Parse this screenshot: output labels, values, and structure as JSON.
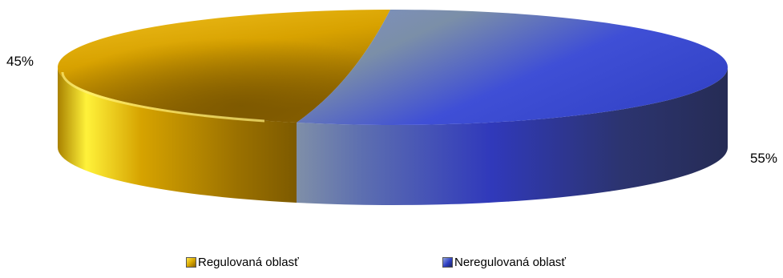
{
  "chart_data": {
    "type": "pie",
    "style": "3d-exploded-perspective",
    "title": "",
    "categories": [
      "Regulovaná oblasť",
      "Neregulovaná oblasť"
    ],
    "values": [
      45,
      55
    ],
    "data_labels": [
      "45%",
      "55%"
    ],
    "colors": [
      "#d9a800",
      "#3a44b8"
    ],
    "legend_position": "bottom"
  },
  "legend": {
    "items": [
      {
        "label": "Regulovaná oblasť",
        "color": "#d9a800"
      },
      {
        "label": "Neregulovaná oblasť",
        "color": "#3a44b8"
      }
    ]
  }
}
